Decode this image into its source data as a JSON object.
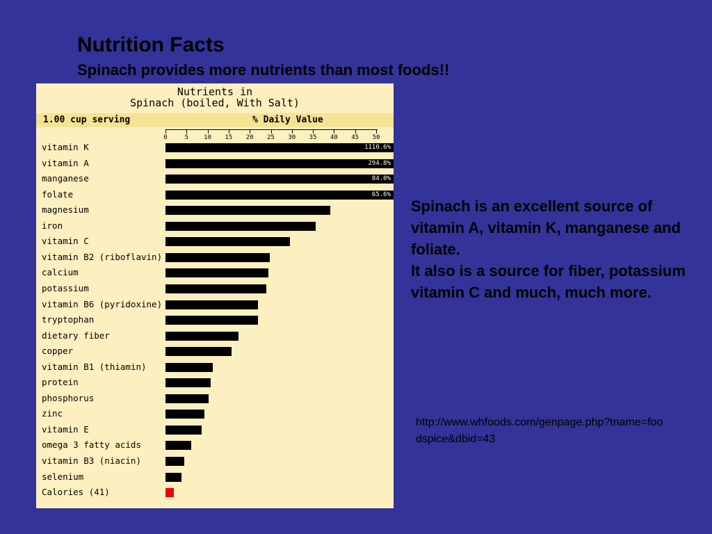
{
  "slide": {
    "title": "Nutrition Facts",
    "subtitle": "Spinach provides more nutrients than most foods!!",
    "description": [
      "Spinach is an excellent source of vitamin A, vitamin K, manganese and foliate.",
      "It also is a source for fiber, potassium vitamin C and much, much more."
    ],
    "source_url": "http://www.whfoods.com/genpage.php?tname=foodspice&dbid=43"
  },
  "colors": {
    "background": "#333399",
    "panel": "#fdf0c0",
    "header_band": "#f5e394",
    "bar": "#000000",
    "calorie_bar": "#ee0000"
  },
  "chart_data": {
    "type": "bar",
    "orientation": "horizontal",
    "title": "Nutrients in\nSpinach (boiled, With Salt)",
    "serving": "1.00 cup serving",
    "xlabel": "% Daily Value",
    "xlim": [
      0,
      50
    ],
    "xticks": [
      0,
      5,
      10,
      15,
      20,
      25,
      30,
      35,
      40,
      45,
      50
    ],
    "grid": false,
    "legend": "none",
    "categories": [
      "vitamin K",
      "vitamin A",
      "manganese",
      "folate",
      "magnesium",
      "iron",
      "vitamin C",
      "vitamin B2 (riboflavin)",
      "calcium",
      "potassium",
      "vitamin B6 (pyridoxine)",
      "tryptophan",
      "dietary fiber",
      "copper",
      "vitamin B1 (thiamin)",
      "protein",
      "phosphorus",
      "zinc",
      "vitamin E",
      "omega 3 fatty acids",
      "vitamin B3 (niacin)",
      "selenium",
      "Calories (41)"
    ],
    "values": [
      1110.6,
      294.8,
      84.0,
      65.6,
      39.1,
      35.7,
      29.5,
      24.7,
      24.5,
      23.9,
      22.0,
      21.9,
      17.3,
      15.7,
      11.3,
      10.7,
      10.2,
      9.2,
      8.6,
      6.1,
      4.4,
      3.8,
      2.0
    ],
    "data_labels": [
      "1110.6%",
      "294.8%",
      "84.0%",
      "65.6%",
      "",
      "",
      "",
      "",
      "",
      "",
      "",
      "",
      "",
      "",
      "",
      "",
      "",
      "",
      "",
      "",
      "",
      "",
      ""
    ]
  }
}
